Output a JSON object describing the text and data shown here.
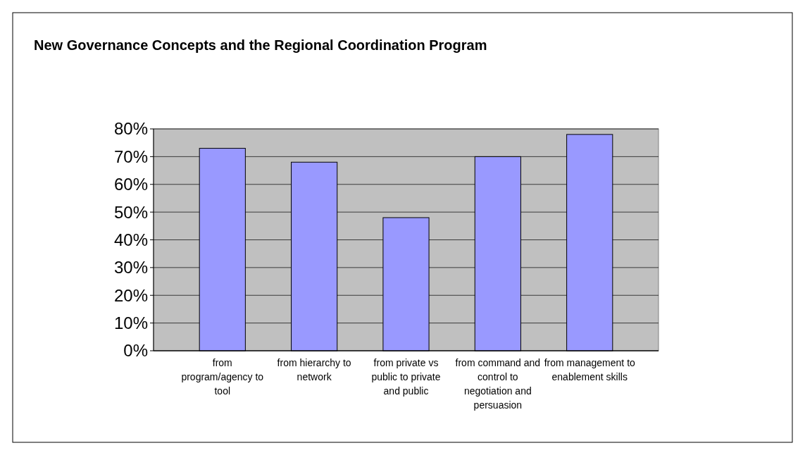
{
  "chart_data": {
    "type": "bar",
    "title": "New Governance Concepts and the Regional Coordination Program",
    "categories": [
      "from program/agency to tool",
      "from hierarchy to network",
      "from private vs public to private and public",
      "from command and control to negotiation and persuasion",
      "from management to enablement skills"
    ],
    "values": [
      73,
      68,
      48,
      70,
      78
    ],
    "color": "#9999ff",
    "ylim": [
      0,
      80
    ],
    "yticks": [
      {
        "value": 0,
        "label": "0%"
      },
      {
        "value": 10,
        "label": "10%"
      },
      {
        "value": 20,
        "label": "20%"
      },
      {
        "value": 30,
        "label": "30%"
      },
      {
        "value": 40,
        "label": "40%"
      },
      {
        "value": 50,
        "label": "50%"
      },
      {
        "value": 60,
        "label": "60%"
      },
      {
        "value": 70,
        "label": "70%"
      },
      {
        "value": 80,
        "label": "80%"
      }
    ],
    "grid": true
  }
}
